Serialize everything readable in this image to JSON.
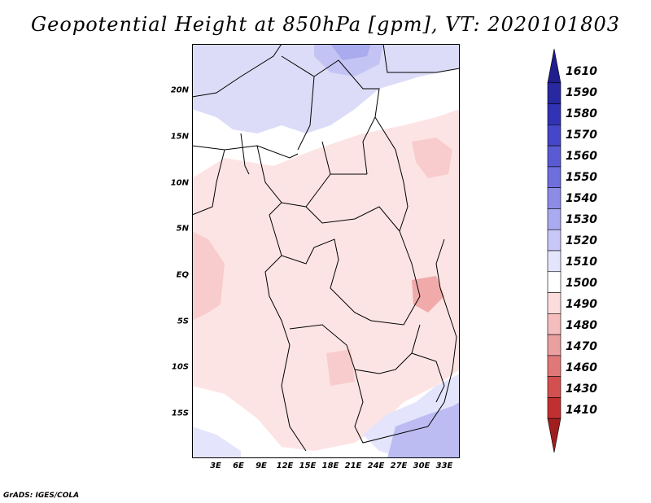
{
  "title": "Geopotential Height at 850hPa [gpm], VT: 2020101803",
  "footer": "GrADS: IGES/COLA",
  "map": {
    "lat_ticks": [
      "20N",
      "15N",
      "10N",
      "5N",
      "EQ",
      "5S",
      "10S",
      "15S"
    ],
    "lon_ticks": [
      "3E",
      "6E",
      "9E",
      "12E",
      "15E",
      "18E",
      "21E",
      "24E",
      "27E",
      "30E",
      "33E"
    ],
    "extent": {
      "lon_min": 0,
      "lon_max": 35,
      "lat_min": -20,
      "lat_max": 25
    }
  },
  "colorbar": {
    "levels": [
      "1610",
      "1590",
      "1580",
      "1570",
      "1560",
      "1550",
      "1540",
      "1530",
      "1520",
      "1510",
      "1500",
      "1490",
      "1480",
      "1470",
      "1460",
      "1430",
      "1410"
    ],
    "colors": [
      "#1e1e8c",
      "#2828a0",
      "#3232b4",
      "#4646c8",
      "#5a5ad2",
      "#6e6edc",
      "#8c8ce6",
      "#aaaaf0",
      "#c8c8f8",
      "#e4e4fc",
      "#ffffff",
      "#fcdcdc",
      "#f5bebe",
      "#eba0a0",
      "#e07878",
      "#d25050",
      "#c03030",
      "#a01e1e"
    ]
  }
}
